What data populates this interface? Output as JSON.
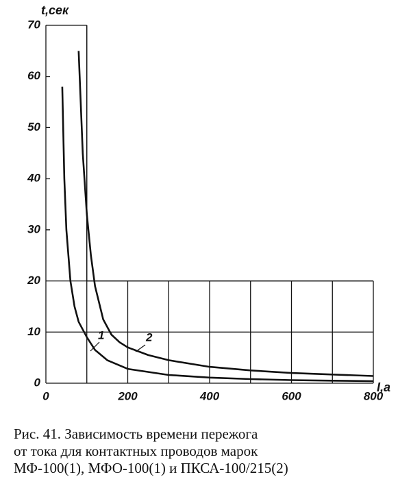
{
  "chart_data": {
    "type": "line",
    "y_label": "t,сек",
    "x_label": "I,а",
    "xlim": [
      0,
      800
    ],
    "ylim": [
      0,
      70
    ],
    "xticks": [
      0,
      200,
      400,
      600,
      800
    ],
    "yticks": [
      0,
      10,
      20,
      30,
      40,
      50,
      60,
      70
    ],
    "x_minor_grid": [
      100,
      300,
      500,
      700
    ],
    "grid_corner": [
      100,
      20
    ],
    "series": [
      {
        "name": "1",
        "color": "#111111",
        "x": [
          40,
          45,
          50,
          60,
          70,
          80,
          100,
          120,
          150,
          200,
          300,
          400,
          500,
          600,
          700,
          800
        ],
        "values": [
          58,
          40,
          30,
          20,
          15,
          12,
          9,
          6.5,
          4.5,
          2.8,
          1.6,
          1.1,
          0.8,
          0.6,
          0.5,
          0.4
        ]
      },
      {
        "name": "2",
        "color": "#111111",
        "x": [
          80,
          85,
          90,
          100,
          110,
          120,
          140,
          160,
          180,
          200,
          250,
          300,
          400,
          500,
          600,
          700,
          800
        ],
        "values": [
          65,
          55,
          45,
          33,
          25,
          19,
          12.5,
          9.5,
          8,
          7,
          5.5,
          4.5,
          3.2,
          2.5,
          2,
          1.7,
          1.4
        ]
      }
    ]
  },
  "caption": [
    "Рис. 41. Зависимость времени пережога",
    "от тока для контактных проводов марок",
    "МФ-100(1), МФО-100(1) и ПКСА-100/215(2)"
  ]
}
